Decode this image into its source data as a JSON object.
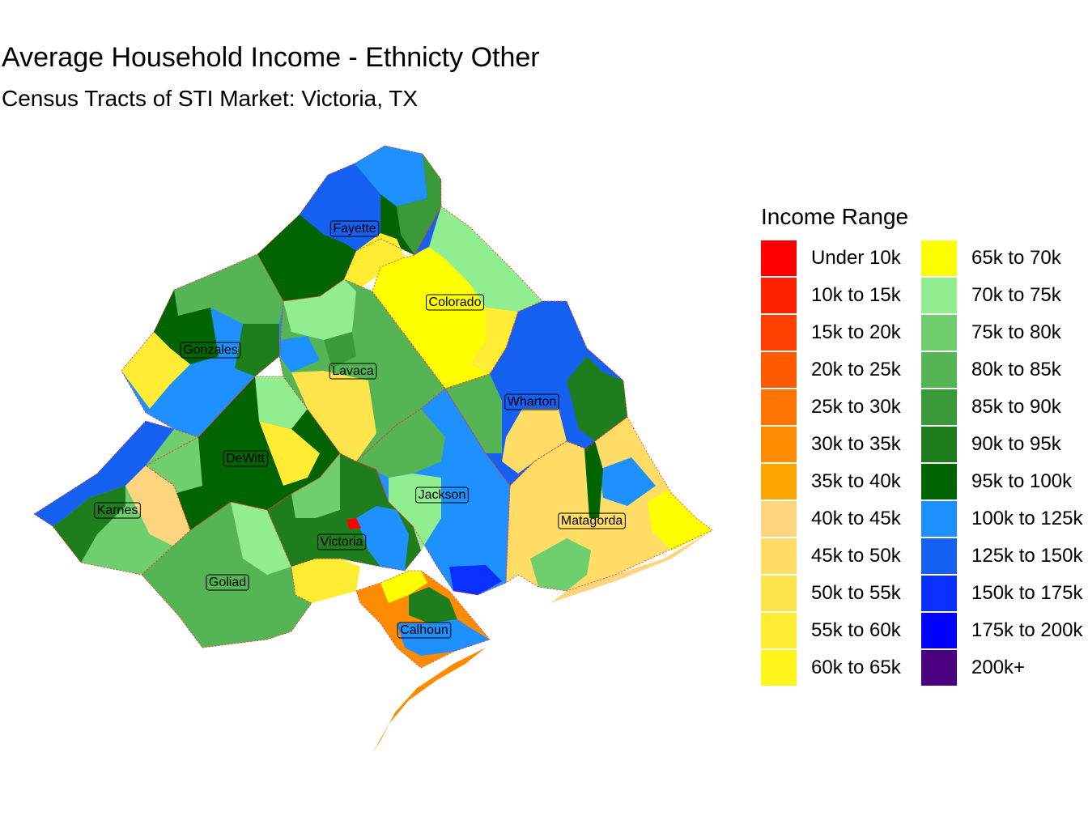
{
  "title": "Average Household Income - Ethnicty Other",
  "subtitle": "Census Tracts of STI Market: Victoria, TX",
  "legend": {
    "title": "Income Range",
    "items": [
      {
        "label": "Under 10k",
        "color": "#FF0000"
      },
      {
        "label": "10k to 15k",
        "color": "#FF2200"
      },
      {
        "label": "15k to 20k",
        "color": "#FF4000"
      },
      {
        "label": "20k to 25k",
        "color": "#FF5A00"
      },
      {
        "label": "25k to 30k",
        "color": "#FF7300"
      },
      {
        "label": "30k to 35k",
        "color": "#FF8C00"
      },
      {
        "label": "35k to 40k",
        "color": "#FFA500"
      },
      {
        "label": "40k to 45k",
        "color": "#FFD580"
      },
      {
        "label": "45k to 50k",
        "color": "#FFDD66"
      },
      {
        "label": "50k to 55k",
        "color": "#FFE44D"
      },
      {
        "label": "55k to 60k",
        "color": "#FFEC33"
      },
      {
        "label": "60k to 65k",
        "color": "#FFF51A"
      },
      {
        "label": "65k to 70k",
        "color": "#FFFF00"
      },
      {
        "label": "70k to 75k",
        "color": "#90EE90"
      },
      {
        "label": "75k to 80k",
        "color": "#6FCF6F"
      },
      {
        "label": "80k to 85k",
        "color": "#55B555"
      },
      {
        "label": "85k to 90k",
        "color": "#3A9A3A"
      },
      {
        "label": "90k to 95k",
        "color": "#1E7E1E"
      },
      {
        "label": "95k to 100k",
        "color": "#006400"
      },
      {
        "label": "100k to 125k",
        "color": "#1E90FF"
      },
      {
        "label": "125k to 150k",
        "color": "#1560F0"
      },
      {
        "label": "150k to 175k",
        "color": "#0A30FF"
      },
      {
        "label": "175k to 200k",
        "color": "#0000FF"
      },
      {
        "label": "200k+",
        "color": "#4B0082"
      }
    ]
  },
  "map": {
    "counties": [
      {
        "name": "Fayette",
        "color": "#006400"
      },
      {
        "name": "Colorado",
        "color": "#FFFF00"
      },
      {
        "name": "Gonzales",
        "color": "#1E90FF"
      },
      {
        "name": "Lavaca",
        "color": "#55B555"
      },
      {
        "name": "Wharton",
        "color": "#1560F0"
      },
      {
        "name": "DeWitt",
        "color": "#006400"
      },
      {
        "name": "Jackson",
        "color": "#1E90FF"
      },
      {
        "name": "Karnes",
        "color": "#6FCF6F"
      },
      {
        "name": "Matagorda",
        "color": "#FFDD66"
      },
      {
        "name": "Victoria",
        "color": "#1E7E1E"
      },
      {
        "name": "Goliad",
        "color": "#55B555"
      },
      {
        "name": "Calhoun",
        "color": "#FF8C00"
      }
    ]
  }
}
